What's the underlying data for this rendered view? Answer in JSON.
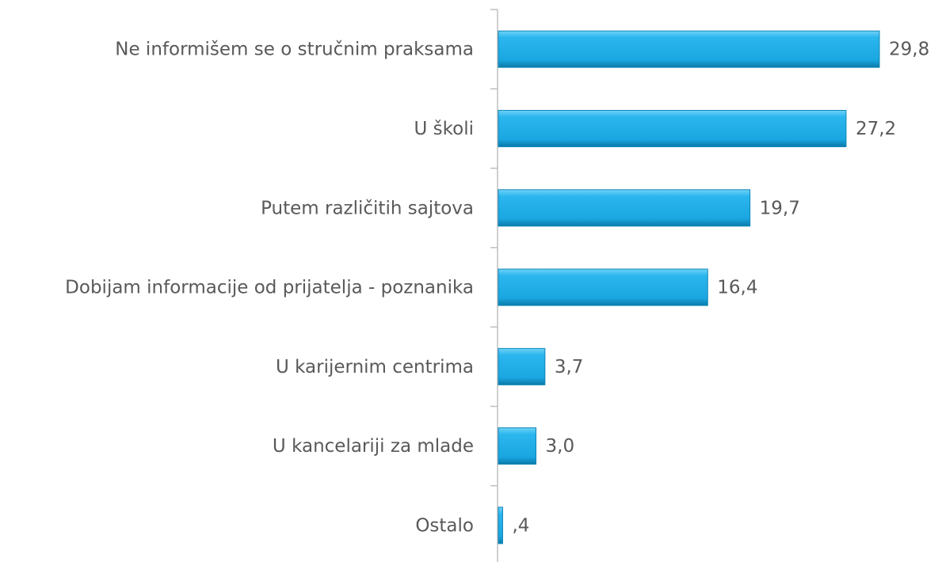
{
  "chart_data": {
    "type": "bar",
    "orientation": "horizontal",
    "categories": [
      "Ne informišem se o stručnim praksama",
      "U školi",
      "Putem različitih sajtova",
      "Dobijam informacije od prijatelja - poznanika",
      "U karijernim centrima",
      "U kancelariji za mlade",
      "Ostalo"
    ],
    "values": [
      29.8,
      27.2,
      19.7,
      16.4,
      3.7,
      3.0,
      0.4
    ],
    "value_labels": [
      "29,8",
      "27,2",
      "19,7",
      "16,4",
      "3,7",
      "3,0",
      ",4"
    ],
    "color": "#1aa6e0"
  }
}
